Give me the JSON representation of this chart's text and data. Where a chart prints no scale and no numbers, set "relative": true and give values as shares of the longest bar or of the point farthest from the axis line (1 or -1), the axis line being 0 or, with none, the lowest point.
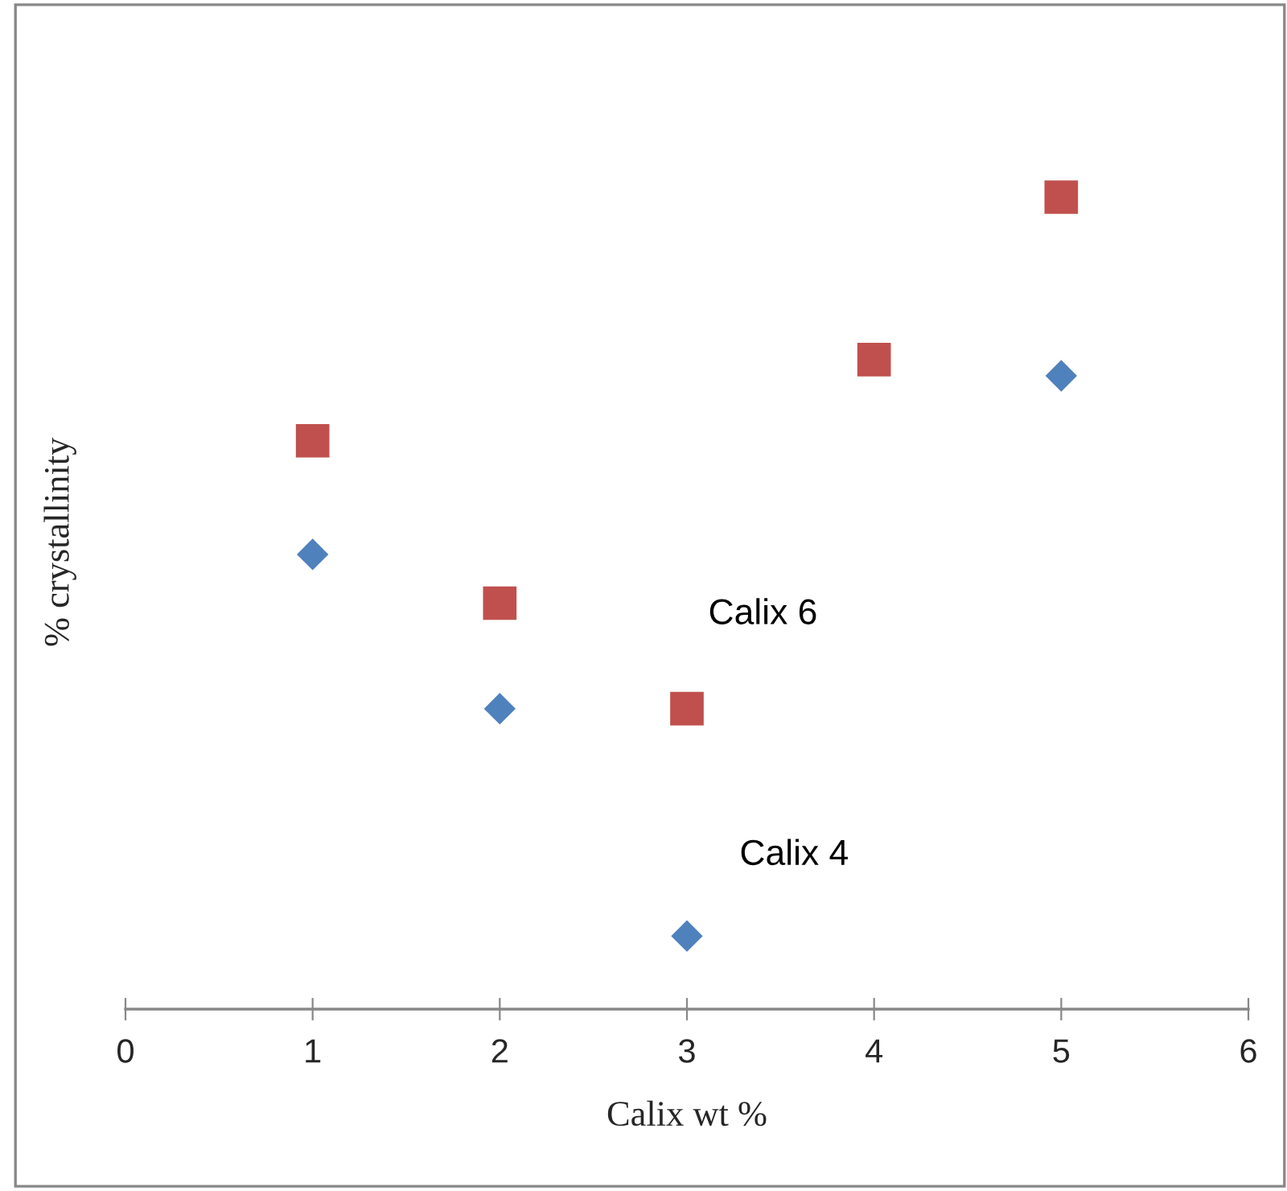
{
  "chart_data": {
    "type": "scatter",
    "relative": true,
    "xlabel": "Calix wt %",
    "ylabel": "% crystallinity",
    "xlim": [
      0,
      6
    ],
    "xticks": [
      0,
      1,
      2,
      3,
      4,
      5,
      6
    ],
    "grid": false,
    "legend": false,
    "series": [
      {
        "name": "Calix 6",
        "color": "#c0504d",
        "marker": "square",
        "x": [
          1,
          2,
          3,
          4,
          5
        ],
        "values": [
          0.7,
          0.5,
          0.37,
          0.8,
          1.0
        ]
      },
      {
        "name": "Calix 4",
        "color": "#4f81bd",
        "marker": "diamond",
        "x": [
          1,
          2,
          3,
          5
        ],
        "values": [
          0.56,
          0.37,
          0.09,
          0.78
        ]
      }
    ]
  }
}
